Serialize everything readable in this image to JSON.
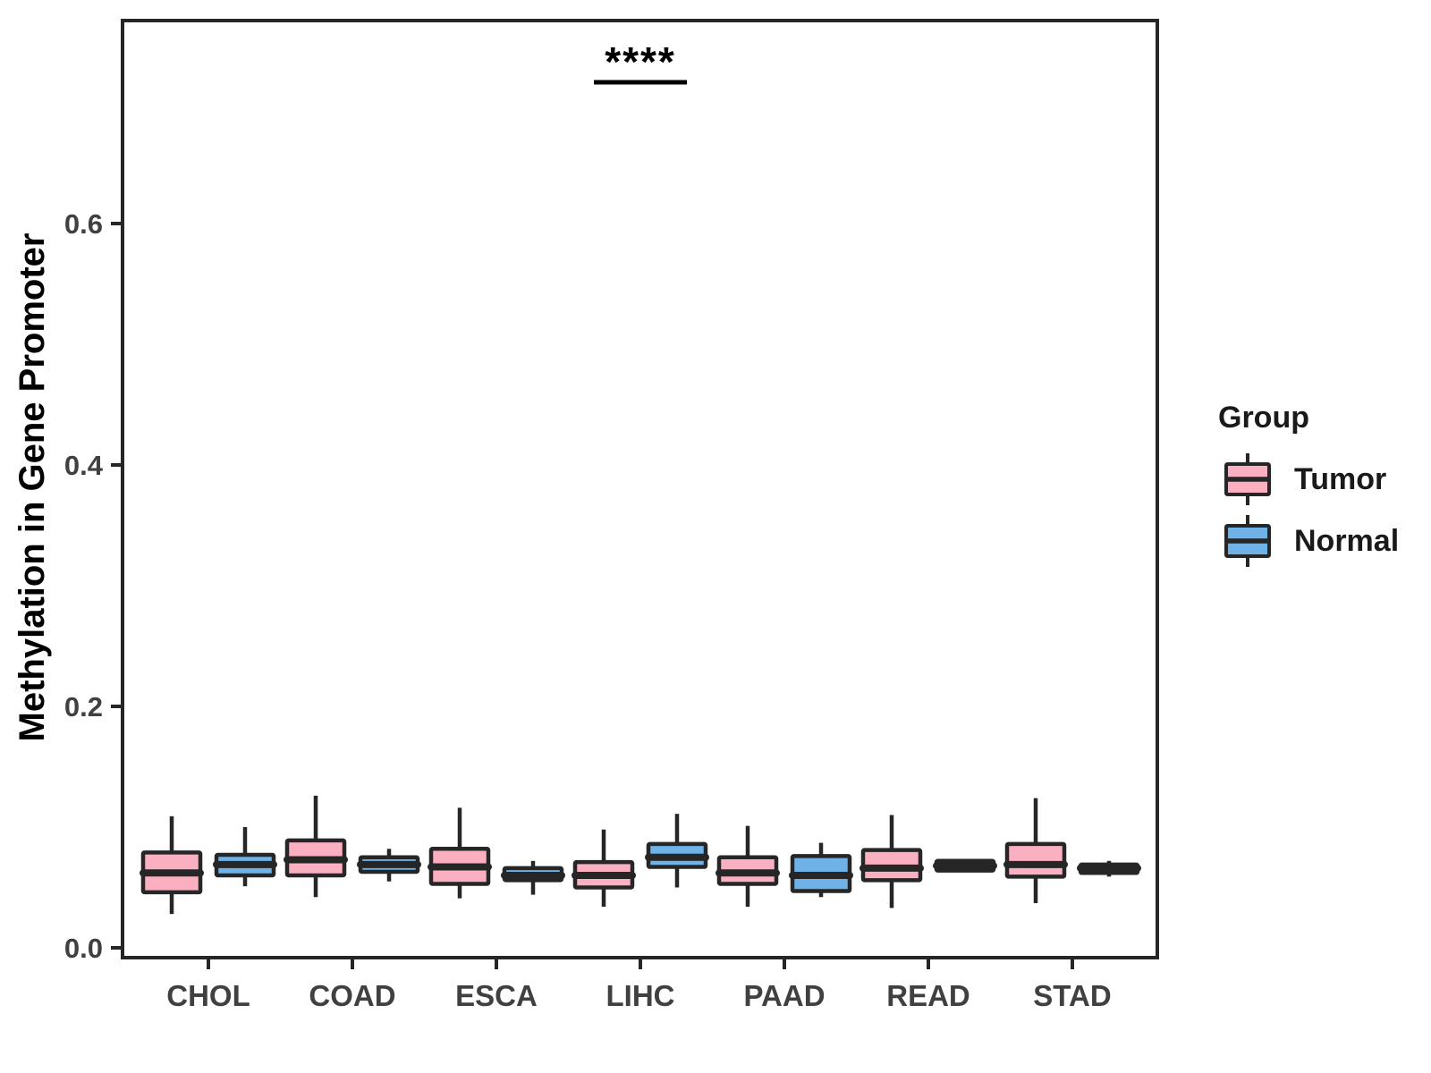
{
  "chart_data": {
    "type": "boxplot",
    "title": "",
    "xlabel": "",
    "ylabel": "Methylation in Gene Promoter",
    "ylim": [
      0,
      0.77
    ],
    "grid": false,
    "yticks": [
      0,
      0.2,
      0.4,
      0.6
    ],
    "ytick_labels": [
      "0.0",
      "0.2",
      "0.4",
      "0.6"
    ],
    "categories": [
      "CHOL",
      "COAD",
      "ESCA",
      "LIHC",
      "PAAD",
      "READ",
      "STAD"
    ],
    "legend": {
      "title": "Group",
      "position": "right",
      "items": [
        {
          "label": "Tumor",
          "fill": "#FAB0C1"
        },
        {
          "label": "Normal",
          "fill": "#6EB2E8"
        }
      ]
    },
    "stroke_color": "#262626",
    "tick_label_color": "#404040",
    "series": [
      {
        "name": "Tumor",
        "fill": "#FAB0C1",
        "stats": [
          {
            "category": "CHOL",
            "whisker_low": 0.028,
            "q1": 0.046,
            "median": 0.062,
            "q3": 0.079,
            "whisker_high": 0.109
          },
          {
            "category": "COAD",
            "whisker_low": 0.042,
            "q1": 0.06,
            "median": 0.073,
            "q3": 0.089,
            "whisker_high": 0.126
          },
          {
            "category": "ESCA",
            "whisker_low": 0.041,
            "q1": 0.053,
            "median": 0.067,
            "q3": 0.082,
            "whisker_high": 0.116
          },
          {
            "category": "LIHC",
            "whisker_low": 0.034,
            "q1": 0.05,
            "median": 0.06,
            "q3": 0.071,
            "whisker_high": 0.098
          },
          {
            "category": "PAAD",
            "whisker_low": 0.034,
            "q1": 0.053,
            "median": 0.062,
            "q3": 0.075,
            "whisker_high": 0.101
          },
          {
            "category": "READ",
            "whisker_low": 0.033,
            "q1": 0.056,
            "median": 0.066,
            "q3": 0.081,
            "whisker_high": 0.11
          },
          {
            "category": "STAD",
            "whisker_low": 0.037,
            "q1": 0.059,
            "median": 0.069,
            "q3": 0.086,
            "whisker_high": 0.124
          }
        ]
      },
      {
        "name": "Normal",
        "fill": "#6EB2E8",
        "stats": [
          {
            "category": "CHOL",
            "whisker_low": 0.051,
            "q1": 0.06,
            "median": 0.069,
            "q3": 0.077,
            "whisker_high": 0.1
          },
          {
            "category": "COAD",
            "whisker_low": 0.055,
            "q1": 0.063,
            "median": 0.069,
            "q3": 0.075,
            "whisker_high": 0.082
          },
          {
            "category": "ESCA",
            "whisker_low": 0.044,
            "q1": 0.056,
            "median": 0.06,
            "q3": 0.066,
            "whisker_high": 0.072
          },
          {
            "category": "LIHC",
            "whisker_low": 0.05,
            "q1": 0.067,
            "median": 0.075,
            "q3": 0.086,
            "whisker_high": 0.111
          },
          {
            "category": "PAAD",
            "whisker_low": 0.042,
            "q1": 0.047,
            "median": 0.06,
            "q3": 0.076,
            "whisker_high": 0.087
          },
          {
            "category": "READ",
            "whisker_low": 0.064,
            "q1": 0.064,
            "median": 0.068,
            "q3": 0.072,
            "whisker_high": 0.072
          },
          {
            "category": "STAD",
            "whisker_low": 0.059,
            "q1": 0.062,
            "median": 0.066,
            "q3": 0.069,
            "whisker_high": 0.072
          }
        ]
      }
    ],
    "annotations": [
      {
        "label": "****",
        "category": "LIHC",
        "between": [
          "Tumor",
          "Normal"
        ],
        "line_value": 0.717
      }
    ]
  }
}
